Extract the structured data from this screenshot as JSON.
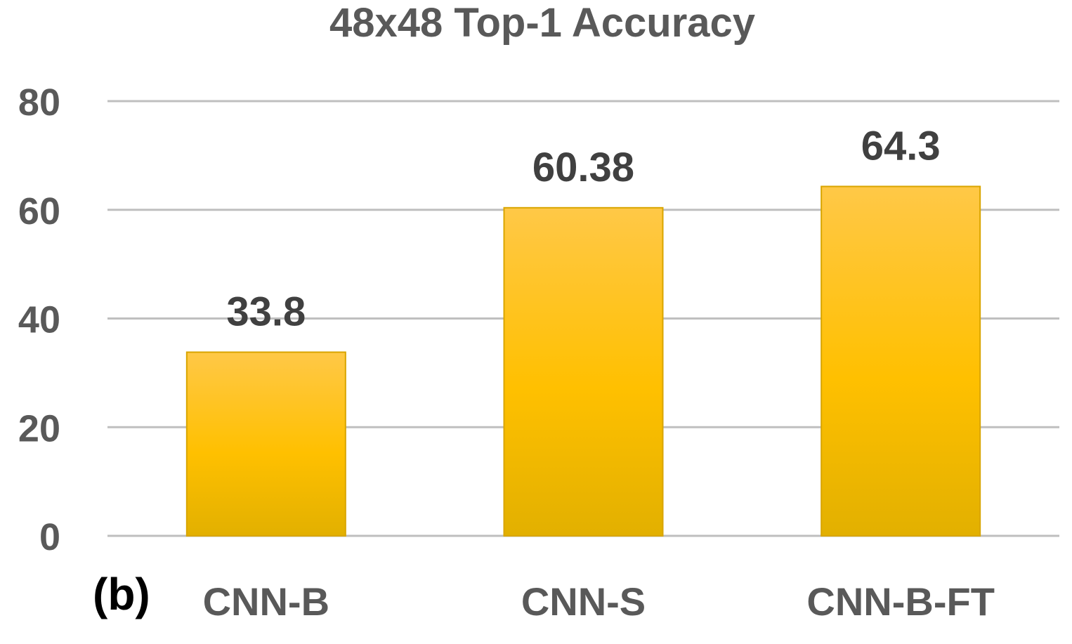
{
  "chart_data": {
    "type": "bar",
    "title": "48x48 Top-1 Accuracy",
    "panel_label": "(b)",
    "categories": [
      "CNN-B",
      "CNN-S",
      "CNN-B-FT"
    ],
    "values": [
      33.8,
      60.38,
      64.3
    ],
    "data_labels": [
      "33.8",
      "60.38",
      "64.3"
    ],
    "y_ticks": [
      0,
      20,
      40,
      60,
      80
    ],
    "ylim": [
      0,
      80
    ],
    "xlabel": "",
    "ylabel": "",
    "grid": true,
    "legend": "none",
    "colors": {
      "bar_top": "#FFC847",
      "bar_mid": "#FFC000",
      "bar_bottom": "#E2B000",
      "bar_edge": "#D9A500",
      "gridline": "#BFBFBF",
      "title_text": "#595959",
      "tick_text": "#595959",
      "category_text": "#595959",
      "data_label_text": "#404040",
      "panel_label_text": "#000000"
    }
  }
}
